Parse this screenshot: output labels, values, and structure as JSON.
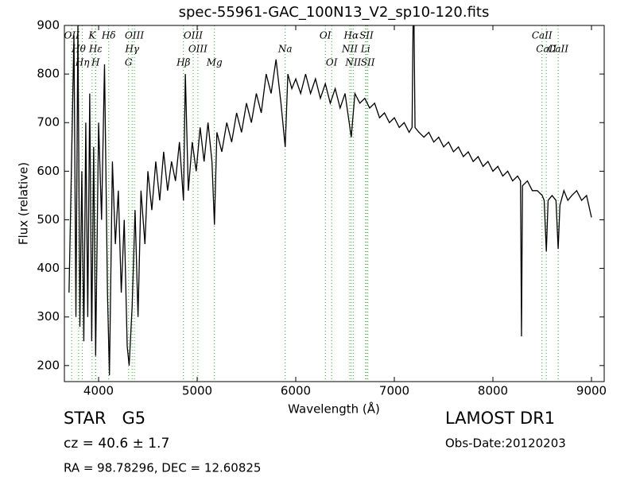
{
  "chart_data": {
    "type": "line",
    "title": "spec-55961-GAC_100N13_V2_sp10-120.fits",
    "xlabel": "Wavelength (Å)",
    "ylabel": "Flux (relative)",
    "xlim": [
      3653,
      9129
    ],
    "ylim": [
      167,
      900
    ],
    "xticks": [
      4000,
      5000,
      6000,
      7000,
      8000,
      9000
    ],
    "yticks": [
      200,
      300,
      400,
      500,
      600,
      700,
      800,
      900
    ],
    "color": "#000000",
    "line_color": "#33aa33",
    "x": [
      3700,
      3750,
      3770,
      3790,
      3810,
      3830,
      3850,
      3870,
      3890,
      3910,
      3930,
      3950,
      3970,
      4000,
      4030,
      4060,
      4090,
      4110,
      4140,
      4170,
      4200,
      4230,
      4260,
      4290,
      4310,
      4340,
      4370,
      4400,
      4430,
      4470,
      4500,
      4540,
      4580,
      4620,
      4660,
      4700,
      4740,
      4780,
      4820,
      4861,
      4880,
      4910,
      4950,
      4990,
      5030,
      5070,
      5110,
      5150,
      5175,
      5200,
      5250,
      5300,
      5350,
      5400,
      5450,
      5500,
      5550,
      5600,
      5650,
      5700,
      5750,
      5800,
      5850,
      5893,
      5920,
      5960,
      6000,
      6050,
      6100,
      6150,
      6200,
      6250,
      6300,
      6350,
      6400,
      6450,
      6500,
      6563,
      6600,
      6650,
      6700,
      6750,
      6800,
      6850,
      6900,
      6950,
      7000,
      7050,
      7100,
      7150,
      7180,
      7190,
      7200,
      7210,
      7250,
      7300,
      7350,
      7400,
      7450,
      7500,
      7550,
      7600,
      7650,
      7700,
      7750,
      7800,
      7850,
      7900,
      7950,
      8000,
      8050,
      8100,
      8150,
      8200,
      8250,
      8280,
      8290,
      8300,
      8350,
      8400,
      8450,
      8500,
      8520,
      8542,
      8560,
      8600,
      8640,
      8662,
      8680,
      8720,
      8760,
      8800,
      8850,
      8900,
      8950,
      9000
    ],
    "values": [
      350,
      880,
      300,
      900,
      280,
      600,
      250,
      700,
      300,
      760,
      250,
      650,
      220,
      700,
      500,
      820,
      350,
      180,
      620,
      450,
      560,
      350,
      500,
      240,
      200,
      320,
      520,
      300,
      560,
      450,
      600,
      520,
      620,
      540,
      640,
      560,
      620,
      580,
      660,
      540,
      800,
      560,
      660,
      600,
      690,
      620,
      700,
      620,
      490,
      680,
      640,
      700,
      660,
      720,
      680,
      740,
      700,
      760,
      720,
      800,
      760,
      830,
      740,
      650,
      800,
      770,
      790,
      760,
      800,
      760,
      790,
      750,
      780,
      740,
      770,
      730,
      760,
      670,
      760,
      740,
      750,
      730,
      740,
      710,
      720,
      700,
      710,
      690,
      700,
      680,
      690,
      900,
      900,
      690,
      680,
      670,
      680,
      660,
      670,
      650,
      660,
      640,
      650,
      630,
      640,
      620,
      630,
      610,
      620,
      600,
      610,
      590,
      600,
      580,
      590,
      580,
      260,
      570,
      580,
      560,
      560,
      550,
      540,
      435,
      540,
      550,
      540,
      440,
      530,
      560,
      540,
      550,
      560,
      540,
      550,
      505
    ],
    "lines": [
      {
        "label": "OII",
        "x": 3727
      },
      {
        "label": "Hθ",
        "x": 3798
      },
      {
        "label": "Hη",
        "x": 3835
      },
      {
        "label": "K",
        "x": 3934
      },
      {
        "label": "Hε",
        "x": 3970
      },
      {
        "label": "H",
        "x": 3969
      },
      {
        "label": "Hδ",
        "x": 4102
      },
      {
        "label": "Hγ",
        "x": 4340
      },
      {
        "label": "G",
        "x": 4304
      },
      {
        "label": "OIII",
        "x": 4363
      },
      {
        "label": "OIII",
        "x": 5007
      },
      {
        "label": "Hβ",
        "x": 4861
      },
      {
        "label": "OIII",
        "x": 4959
      },
      {
        "label": "Na",
        "x": 5893
      },
      {
        "label": "Mg",
        "x": 5175
      },
      {
        "label": "OI",
        "x": 6300
      },
      {
        "label": "NII",
        "x": 6548
      },
      {
        "label": "OI",
        "x": 6364
      },
      {
        "label": "Hα",
        "x": 6563
      },
      {
        "label": "Li",
        "x": 6708
      },
      {
        "label": "NII",
        "x": 6583
      },
      {
        "label": "SII",
        "x": 6717
      },
      {
        "label": "CaII",
        "x": 8542
      },
      {
        "label": "SII",
        "x": 6731
      },
      {
        "label": "CaII",
        "x": 8498
      },
      {
        "label": "CaII",
        "x": 8662
      }
    ]
  },
  "footer": {
    "object": "STAR   G5",
    "cz": "cz = 40.6 ± 1.7",
    "coords": "RA = 98.78296, DEC = 12.60825",
    "survey": "LAMOST DR1",
    "obs_date": "Obs-Date:20120203"
  }
}
